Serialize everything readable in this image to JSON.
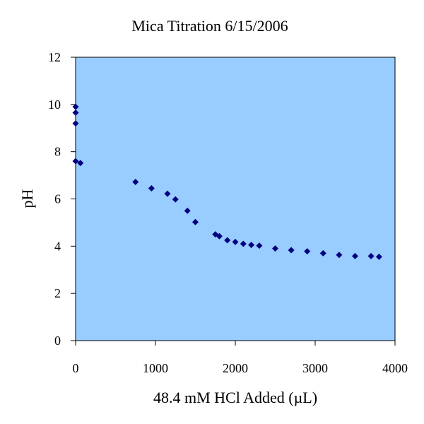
{
  "colors": {
    "plot_background": "#99ccff",
    "marker": "#000080",
    "axis": "#000000",
    "page_background": "#ffffff"
  },
  "chart_data": {
    "type": "scatter",
    "title": "Mica Titration 6/15/2006",
    "xlabel": "48.4 mM HCl Added (µL)",
    "ylabel": "pH",
    "xlim": [
      0,
      4000
    ],
    "ylim": [
      0,
      12
    ],
    "xticks": [
      0,
      1000,
      2000,
      3000,
      4000
    ],
    "yticks": [
      0,
      2,
      4,
      6,
      8,
      10,
      12
    ],
    "grid": false,
    "legend": "none",
    "marker": "diamond",
    "series": [
      {
        "x": [
          0,
          0,
          0,
          0,
          60,
          750,
          950,
          1150,
          1250,
          1400,
          1500,
          1750,
          1800,
          1900,
          2000,
          2100,
          2200,
          2300,
          2500,
          2700,
          2900,
          3100,
          3300,
          3500,
          3700,
          3800
        ],
        "y": [
          9.9,
          9.65,
          9.2,
          7.6,
          7.52,
          6.72,
          6.45,
          6.22,
          5.98,
          5.5,
          5.02,
          4.5,
          4.42,
          4.25,
          4.18,
          4.1,
          4.05,
          4.02,
          3.9,
          3.83,
          3.78,
          3.7,
          3.63,
          3.58,
          3.58,
          3.55
        ]
      }
    ]
  }
}
